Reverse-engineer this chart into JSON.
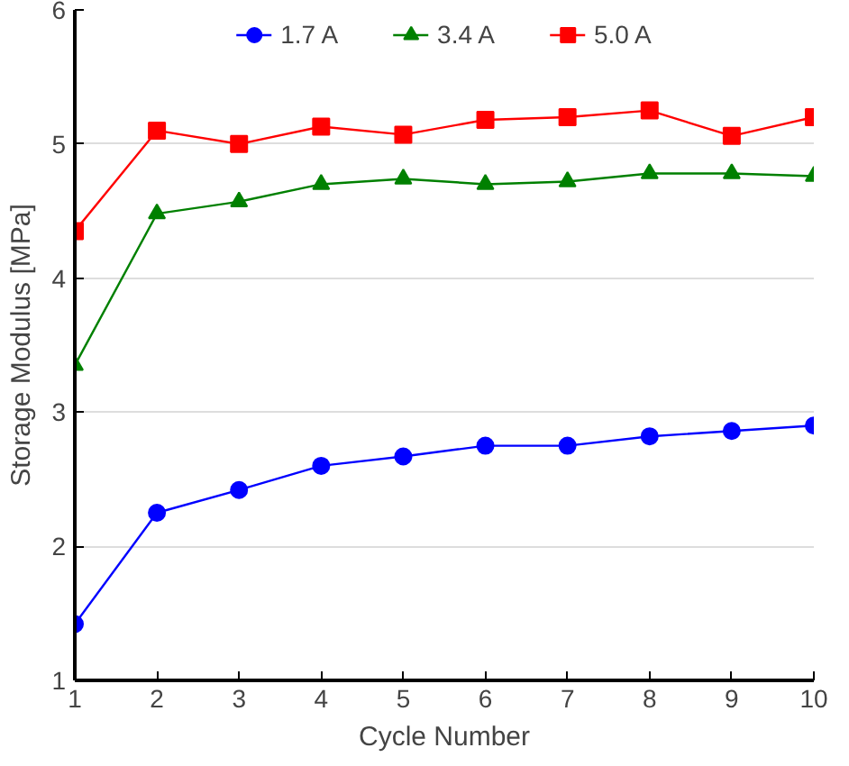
{
  "chart_data": {
    "type": "line",
    "xlabel": "Cycle Number",
    "ylabel": "Storage Modulus [MPa]",
    "x": [
      1,
      2,
      3,
      4,
      5,
      6,
      7,
      8,
      9,
      10
    ],
    "series": [
      {
        "name": "1.7 A",
        "color": "#0000ff",
        "marker": "circle",
        "values": [
          1.42,
          2.25,
          2.42,
          2.6,
          2.67,
          2.75,
          2.75,
          2.82,
          2.86,
          2.9
        ]
      },
      {
        "name": "3.4 A",
        "color": "#008000",
        "marker": "triangle",
        "values": [
          3.35,
          4.48,
          4.57,
          4.7,
          4.74,
          4.7,
          4.72,
          4.78,
          4.78,
          4.76
        ]
      },
      {
        "name": "5.0 A",
        "color": "#ff0000",
        "marker": "square",
        "values": [
          4.35,
          5.1,
          5.0,
          5.13,
          5.07,
          5.18,
          5.2,
          5.25,
          5.06,
          5.2
        ]
      }
    ],
    "xlim": [
      1,
      10
    ],
    "xticks": [
      1,
      2,
      3,
      4,
      5,
      6,
      7,
      8,
      9,
      10
    ],
    "ylim": [
      1,
      6
    ],
    "yticks": [
      1,
      2,
      3,
      4,
      5,
      6
    ],
    "grid": "y",
    "legend": "top",
    "line_style": "solid"
  }
}
